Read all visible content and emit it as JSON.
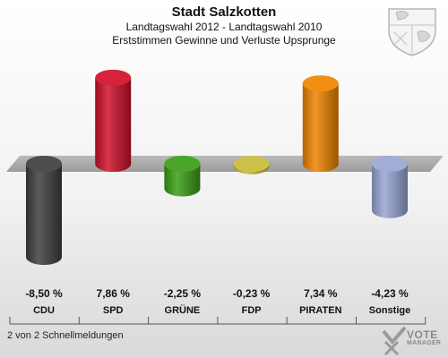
{
  "header": {
    "title": "Stadt Salzkotten",
    "subtitle": "Landtagswahl 2012 - Landtagswahl 2010",
    "caption": "Erststimmen Gewinne und Verluste Upsprunge"
  },
  "footer": {
    "text": "2 von 2 Schnellmeldungen"
  },
  "logo": {
    "line1": "VOTE",
    "line2": "MANAGER"
  },
  "chart_data": {
    "type": "bar",
    "categories": [
      "CDU",
      "SPD",
      "GRÜNE",
      "FDP",
      "PIRATEN",
      "Sonstige"
    ],
    "values": [
      -8.5,
      7.86,
      -2.25,
      -0.23,
      7.34,
      -4.23
    ],
    "value_labels": [
      "-8,50 %",
      "7,86 %",
      "-2,25 %",
      "-0,23 %",
      "7,34 %",
      "-4,23 %"
    ],
    "colors": [
      "#3f3f3f",
      "#d0102a",
      "#3a9e16",
      "#c8bd3a",
      "#f08400",
      "#98a6d4"
    ],
    "ylim": [
      -8.5,
      8.5
    ],
    "legend": "none",
    "grid": false
  }
}
